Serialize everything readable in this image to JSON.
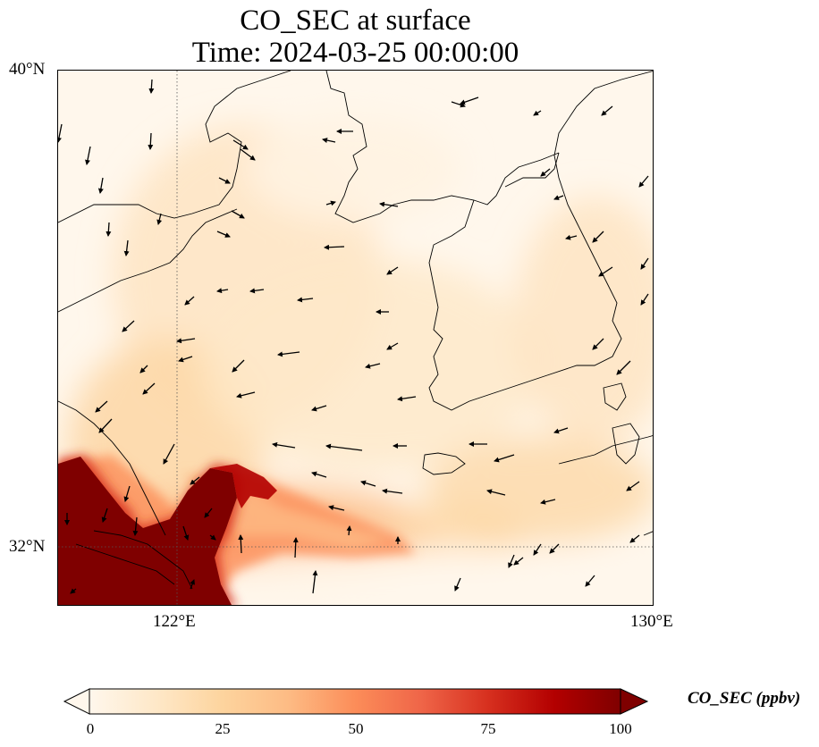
{
  "title": {
    "line1": "CO_SEC at surface",
    "line2": "Time: 2024-03-25 00:00:00"
  },
  "map": {
    "lon_range": [
      120,
      130
    ],
    "lat_range": [
      31,
      40
    ],
    "gridlines": {
      "lon": 122,
      "lat": 32,
      "style": "dotted"
    },
    "lat_labels": [
      "40°N",
      "32°N"
    ],
    "lon_labels": [
      "122°E",
      "130°E"
    ],
    "field": "CO_SEC concentration with wind vectors"
  },
  "colorbar": {
    "label": "CO_SEC (ppbv)",
    "min": 0,
    "max": 100,
    "ticks": [
      "0",
      "25",
      "50",
      "75",
      "100"
    ],
    "colormap": "OrRd",
    "extend": "both",
    "colors": [
      "#fff7ec",
      "#fee8c8",
      "#fdd49e",
      "#fdbb84",
      "#fc8d59",
      "#ef6548",
      "#d7301f",
      "#b30000",
      "#7f0000"
    ]
  }
}
